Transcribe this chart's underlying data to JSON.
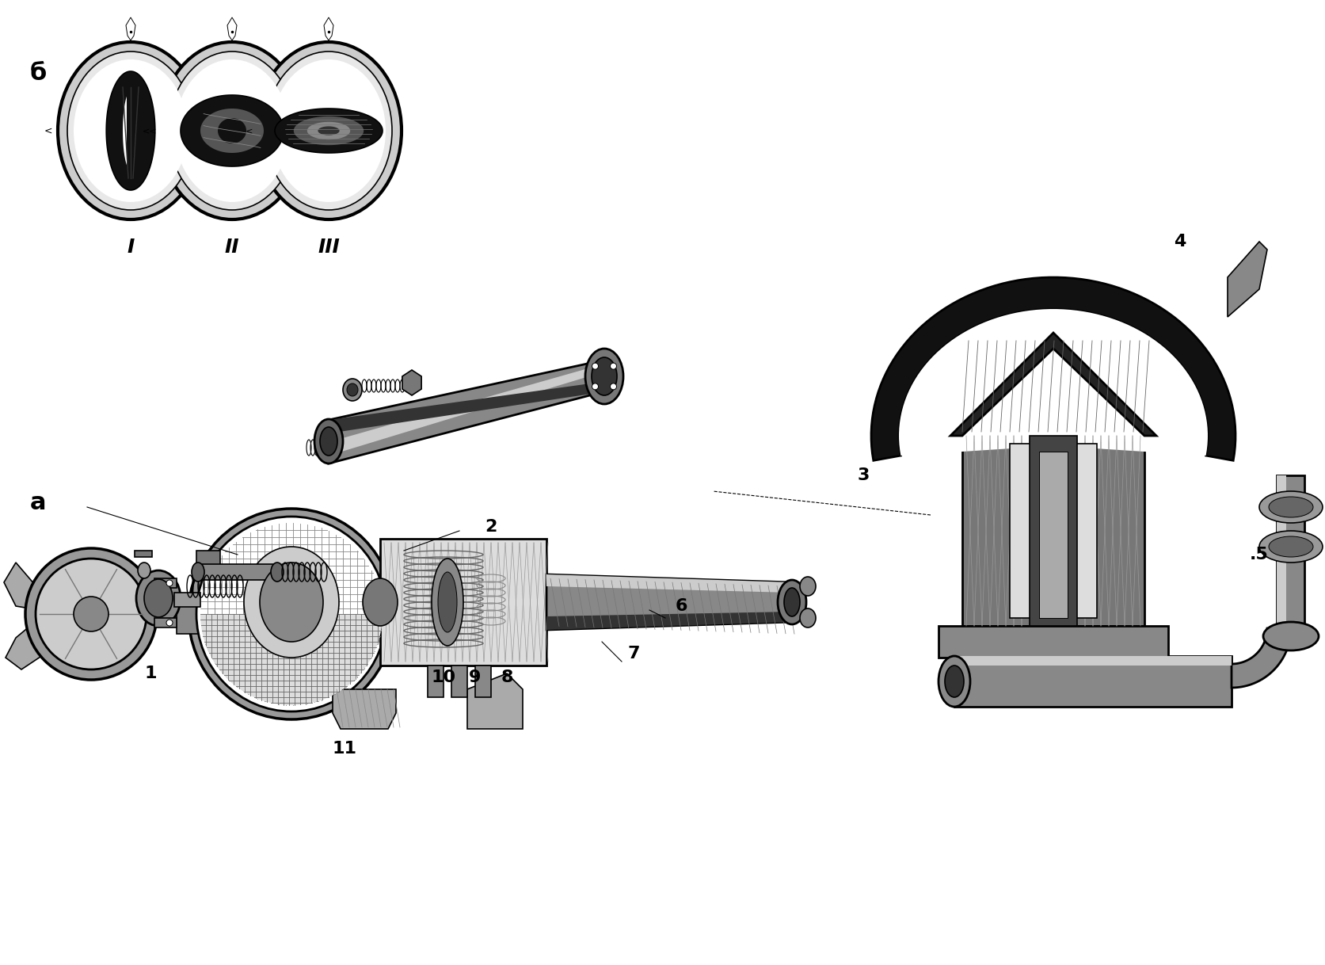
{
  "bg_color": "#ffffff",
  "fig_width": 16.74,
  "fig_height": 12.18,
  "dpi": 100,
  "label_b": "б",
  "label_a": "а",
  "roman_labels": [
    "I",
    "II",
    "III"
  ],
  "part_numbers": [
    "1",
    "2",
    "3",
    "4",
    "5",
    "6",
    "7",
    "8",
    "9",
    "10",
    "11"
  ],
  "line_color": "#000000",
  "font_size_label": 22,
  "font_size_roman": 18,
  "font_size_part": 16
}
